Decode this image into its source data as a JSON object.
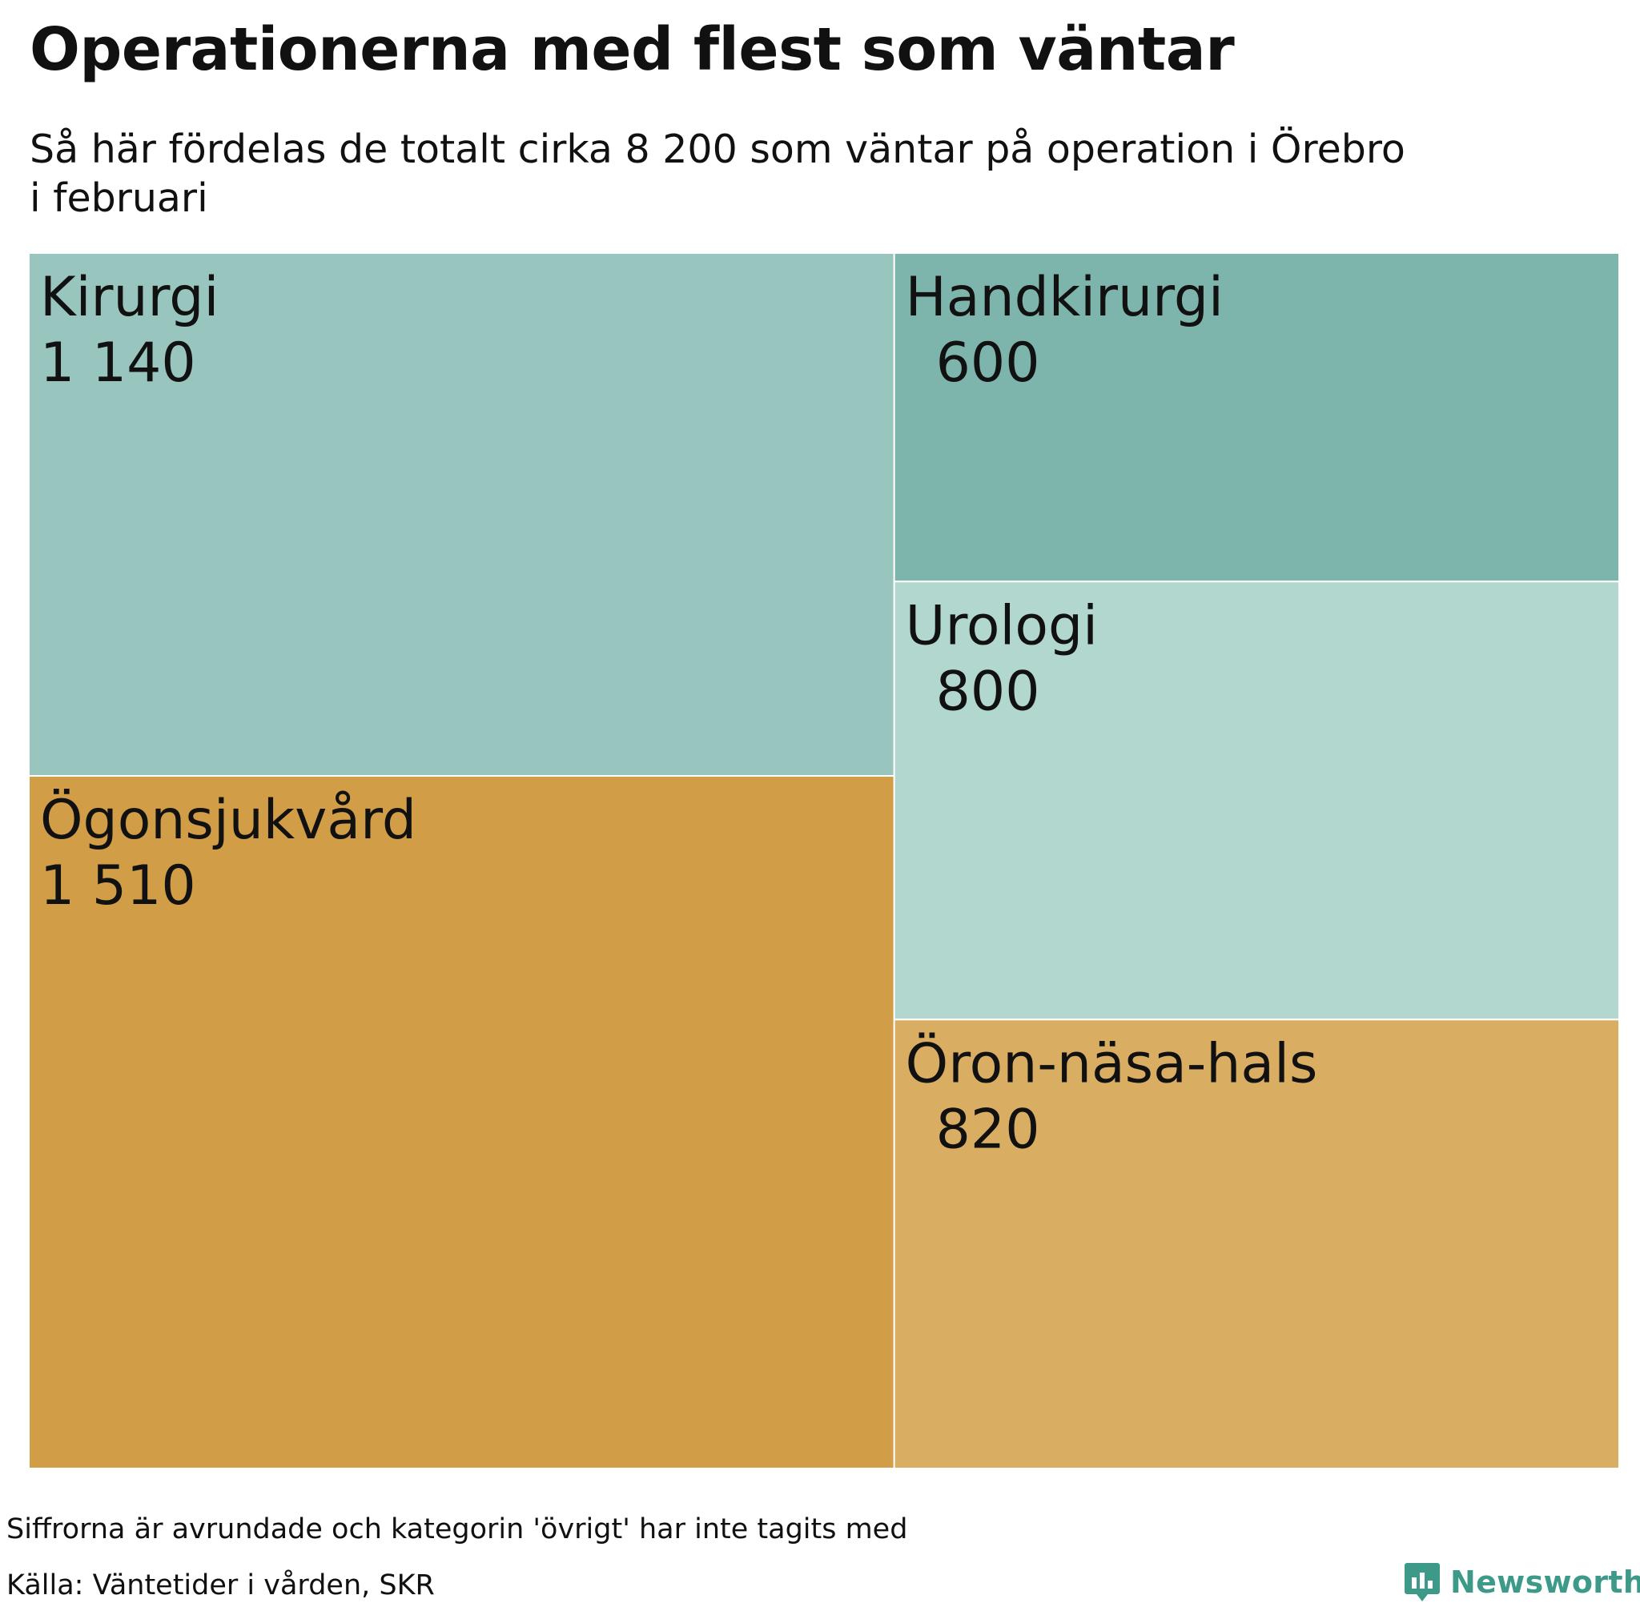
{
  "title": "Operationerna med flest som väntar",
  "subtitle_lines": [
    "Så här fördelas de totalt cirka 8 200 som väntar på operation i Örebro",
    "i februari"
  ],
  "chart_data": {
    "type": "treemap",
    "items": [
      {
        "label": "Kirurgi",
        "value": 1140,
        "value_text": "1 140",
        "color": "#98c5bd"
      },
      {
        "label": "Ögonsjukvård",
        "value": 1510,
        "value_text": "1 510",
        "color": "#d19d46"
      },
      {
        "label": "Handkirurgi",
        "value": 600,
        "value_text": "600",
        "color": "#7db4ac"
      },
      {
        "label": "Urologi",
        "value": 800,
        "value_text": "800",
        "color": "#b1d7cf"
      },
      {
        "label": "Öron-näsa-hals",
        "value": 820,
        "value_text": "820",
        "color": "#d9ae63"
      }
    ]
  },
  "footer": {
    "note": "Siffrorna är avrundade och kategorin 'övrigt' har inte tagits med",
    "source": "Källa: Väntetider i vården, SKR",
    "brand": "Newsworthy",
    "brand_color": "#3d9a88"
  }
}
